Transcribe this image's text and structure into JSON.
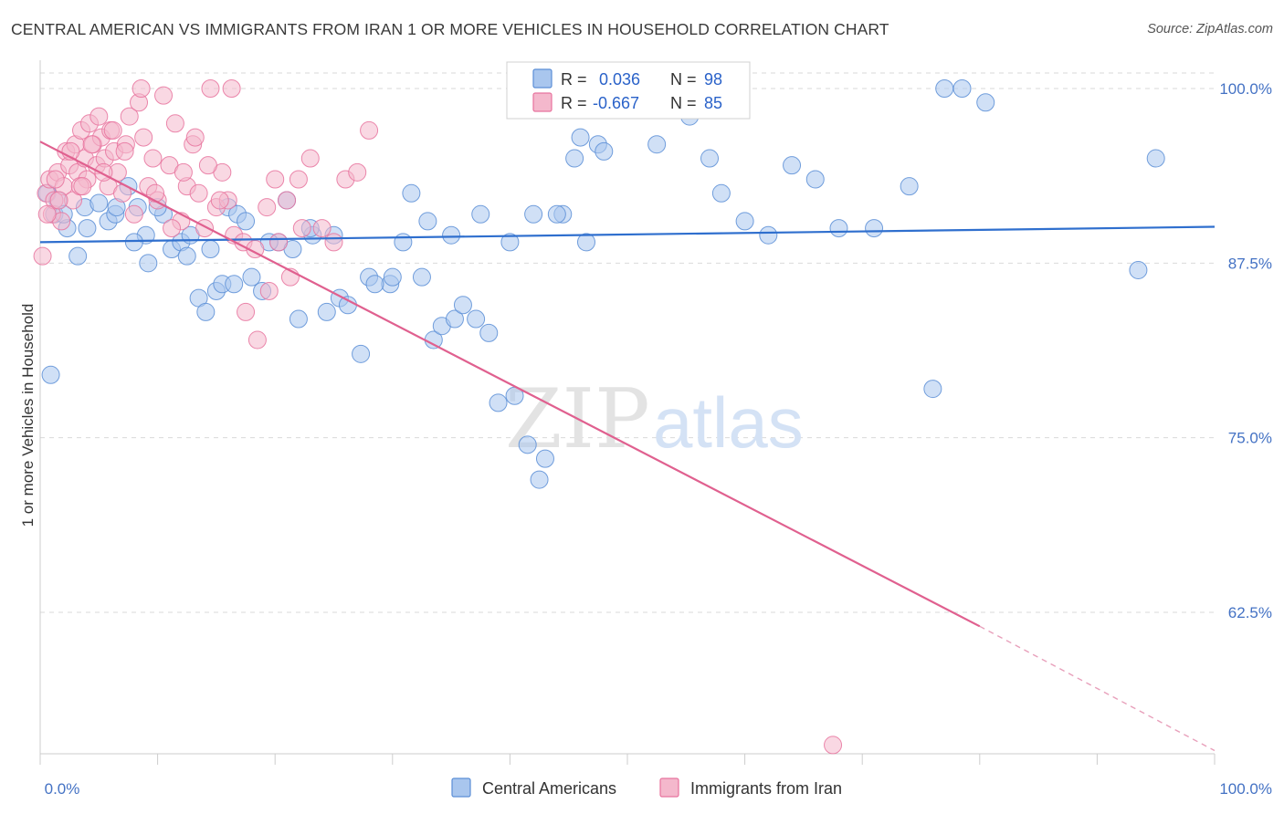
{
  "title": "CENTRAL AMERICAN VS IMMIGRANTS FROM IRAN 1 OR MORE VEHICLES IN HOUSEHOLD CORRELATION CHART",
  "source": "Source: ZipAtlas.com",
  "watermark": {
    "zip": "ZIP",
    "atlas": "atlas"
  },
  "colors": {
    "blue": "#5b8ed6",
    "blue_fill": "#a9c6ee",
    "pink": "#e8739e",
    "pink_fill": "#f4b8cc",
    "axis_text": "#4472c4",
    "grid": "#d9d9d9"
  },
  "legend": {
    "r_label": "R =",
    "n_label": "N =",
    "rows": [
      {
        "r": "0.036",
        "n": "98"
      },
      {
        "r": "-0.667",
        "n": "85"
      }
    ]
  },
  "chart_data": {
    "type": "scatter",
    "title": "CENTRAL AMERICAN VS IMMIGRANTS FROM IRAN 1 OR MORE VEHICLES IN HOUSEHOLD CORRELATION CHART",
    "xlabel": "",
    "ylabel": "1 or more Vehicles in Household",
    "xlim": [
      0,
      100
    ],
    "ylim": [
      51,
      101
    ],
    "y_ticks": [
      62.5,
      75.0,
      87.5,
      100.0
    ],
    "y_tick_labels": [
      "62.5%",
      "75.0%",
      "87.5%",
      "100.0%"
    ],
    "x_tick_labels": [
      "0.0%",
      "100.0%"
    ],
    "grid": "horizontal-dashed",
    "legend_position": "top-center",
    "series": [
      {
        "name": "Central Americans",
        "r": 0.036,
        "n": 98,
        "trend": {
          "x": [
            0,
            100
          ],
          "y": [
            89.0,
            90.1
          ]
        },
        "x": [
          0.6,
          1.2,
          1.5,
          2.3,
          3.2,
          3.8,
          5.0,
          5.8,
          6.4,
          7.5,
          8.3,
          9.0,
          9.2,
          10.5,
          11.2,
          12.0,
          12.5,
          13.5,
          14.1,
          15.0,
          15.5,
          16.0,
          16.8,
          17.5,
          18.0,
          18.9,
          20.3,
          21.0,
          21.5,
          22.0,
          23.2,
          24.4,
          25.5,
          26.2,
          27.3,
          28.0,
          29.8,
          30.9,
          31.6,
          32.5,
          33.5,
          34.2,
          35.3,
          36.0,
          37.1,
          38.2,
          39.0,
          40.4,
          41.5,
          42.5,
          43.0,
          44.5,
          45.5,
          46.0,
          47.5,
          48.0,
          48.5,
          49.5,
          51.0,
          52.5,
          53.5,
          55.3,
          57.0,
          58.0,
          60.0,
          62.0,
          64.0,
          66.0,
          68.0,
          71.0,
          74.0,
          76.0,
          77.0,
          78.5,
          80.5,
          93.5,
          95.0,
          0.9,
          2.0,
          4.0,
          6.5,
          8.0,
          10.0,
          12.8,
          14.5,
          16.5,
          19.5,
          23.0,
          25.0,
          28.5,
          30.0,
          33.0,
          35.0,
          37.5,
          40.0,
          42.0,
          44.0,
          46.5
        ],
        "y": [
          92.5,
          91.0,
          92.0,
          90.0,
          88.0,
          91.5,
          91.8,
          90.5,
          91.0,
          93.0,
          91.5,
          89.5,
          87.5,
          91.0,
          88.5,
          89.0,
          88.0,
          85.0,
          84.0,
          85.5,
          86.0,
          91.5,
          91.0,
          90.5,
          86.5,
          85.5,
          89.0,
          92.0,
          88.5,
          83.5,
          89.5,
          84.0,
          85.0,
          84.5,
          81.0,
          86.5,
          86.0,
          89.0,
          92.5,
          86.5,
          82.0,
          83.0,
          83.5,
          84.5,
          83.5,
          82.5,
          77.5,
          78.0,
          74.5,
          72.0,
          73.5,
          91.0,
          95.0,
          96.5,
          96.0,
          95.5,
          100.0,
          98.5,
          100.0,
          96.0,
          100.0,
          98.0,
          95.0,
          92.5,
          90.5,
          89.5,
          94.5,
          93.5,
          90.0,
          90.0,
          93.0,
          78.5,
          100.0,
          100.0,
          99.0,
          87.0,
          95.0,
          79.5,
          91.0,
          90.0,
          91.5,
          89.0,
          91.5,
          89.5,
          88.5,
          86.0,
          89.0,
          90.0,
          89.5,
          86.0,
          86.5,
          90.5,
          89.5,
          91.0,
          89.0,
          91.0,
          91.0,
          89.0
        ]
      },
      {
        "name": "Immigrants from Iran",
        "r": -0.667,
        "n": 85,
        "trend": {
          "x": [
            0,
            80,
            100
          ],
          "y": [
            96.2,
            61.5,
            52.6
          ]
        },
        "x": [
          0.2,
          0.5,
          0.8,
          1.0,
          1.2,
          1.5,
          1.8,
          2.0,
          2.2,
          2.5,
          2.8,
          3.0,
          3.2,
          3.5,
          3.8,
          4.0,
          4.2,
          4.5,
          4.8,
          5.0,
          5.2,
          5.5,
          5.8,
          6.0,
          6.3,
          6.6,
          7.0,
          7.3,
          7.6,
          8.0,
          8.4,
          8.8,
          9.2,
          9.6,
          10.0,
          10.5,
          11.0,
          11.5,
          12.0,
          12.5,
          13.0,
          13.5,
          14.0,
          14.5,
          15.0,
          15.5,
          16.0,
          16.5,
          17.5,
          18.5,
          19.5,
          20.0,
          21.0,
          22.0,
          23.0,
          24.0,
          25.0,
          26.0,
          27.0,
          28.0,
          1.3,
          2.6,
          3.4,
          4.4,
          5.4,
          6.2,
          7.2,
          8.6,
          9.8,
          11.2,
          12.2,
          13.2,
          14.3,
          15.3,
          16.3,
          17.3,
          18.3,
          19.3,
          20.3,
          21.3,
          22.3,
          0.6,
          1.6,
          3.6,
          67.5
        ],
        "y": [
          88.0,
          92.5,
          93.5,
          91.0,
          92.0,
          94.0,
          90.5,
          93.0,
          95.5,
          94.5,
          92.0,
          96.0,
          94.0,
          97.0,
          95.0,
          93.5,
          97.5,
          96.0,
          94.5,
          98.0,
          96.5,
          95.0,
          93.0,
          97.0,
          95.5,
          94.0,
          92.5,
          96.0,
          98.0,
          91.0,
          99.0,
          96.5,
          93.0,
          95.0,
          92.0,
          99.5,
          94.5,
          97.5,
          90.5,
          93.0,
          96.0,
          92.5,
          90.0,
          100.0,
          91.5,
          94.0,
          92.0,
          89.5,
          84.0,
          82.0,
          85.5,
          93.5,
          92.0,
          93.5,
          95.0,
          90.0,
          89.0,
          93.5,
          94.0,
          97.0,
          93.5,
          95.5,
          93.0,
          96.0,
          94.0,
          97.0,
          95.5,
          100.0,
          92.5,
          90.0,
          94.0,
          96.5,
          94.5,
          92.0,
          100.0,
          89.0,
          88.5,
          91.5,
          89.0,
          86.5,
          90.0,
          91.0,
          92.0,
          93.0,
          53.0
        ]
      }
    ]
  },
  "bottom_legend": [
    {
      "label": "Central Americans"
    },
    {
      "label": "Immigrants from Iran"
    }
  ]
}
